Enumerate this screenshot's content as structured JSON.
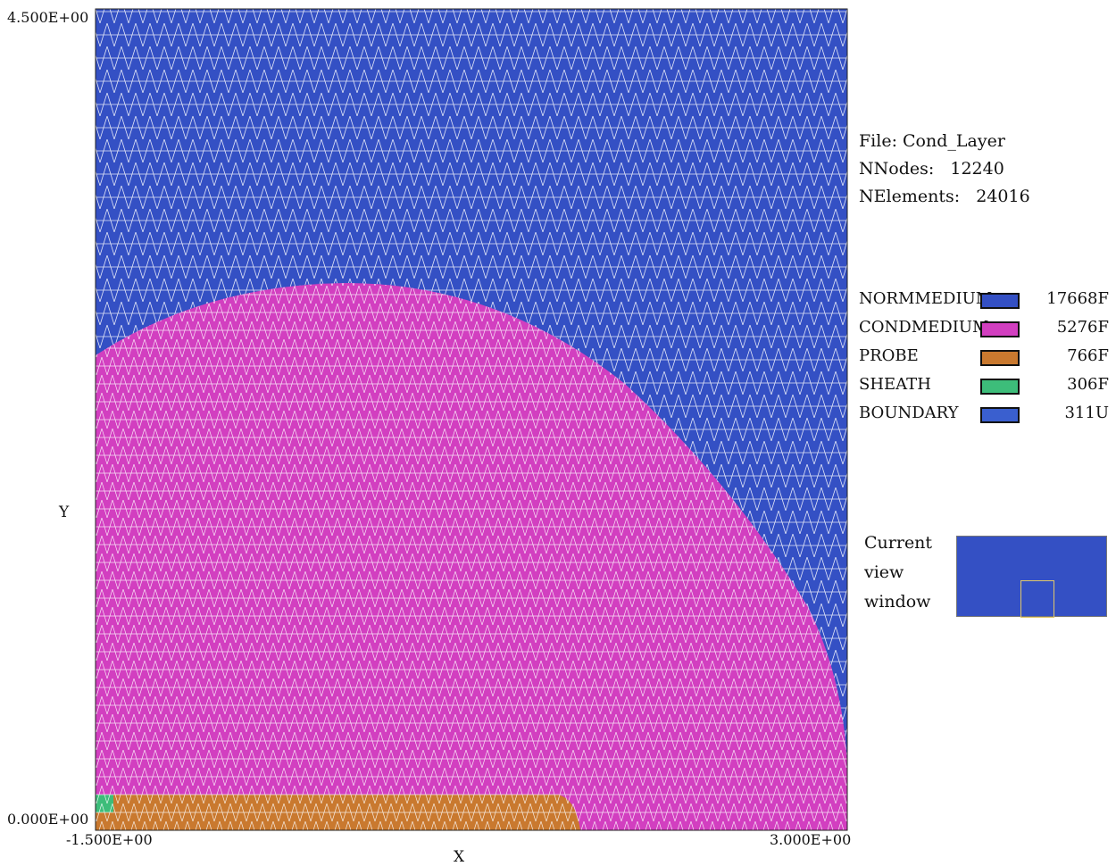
{
  "axes": {
    "y_max_label": "4.500E+00",
    "y_min_label": "0.000E+00",
    "x_min_label": "-1.500E+00",
    "x_max_label": "3.000E+00",
    "x_axis_label": "X",
    "y_axis_label": "Y"
  },
  "info": {
    "file": "File: Cond_Layer",
    "nnodes": "NNodes:   12240",
    "nelements": "NElements:   24016"
  },
  "legend": [
    {
      "name": "NORMMEDIUM",
      "count": "17668F",
      "color": "#3450c4"
    },
    {
      "name": "CONDMEDIUM",
      "count": "5276F",
      "color": "#d23fc0"
    },
    {
      "name": "PROBE",
      "count": "766F",
      "color": "#c9792f"
    },
    {
      "name": "SHEATH",
      "count": "306F",
      "color": "#3dbd7a"
    },
    {
      "name": "BOUNDARY",
      "count": "311U",
      "color": "#3a5fcf"
    }
  ],
  "view_window": {
    "line1": "Current",
    "line2": "view",
    "line3": "window",
    "background": "#3450c4",
    "frame_color": "#e2c86a"
  },
  "colors": {
    "norm_medium": "#3450c4",
    "cond_medium": "#d23fc0",
    "probe": "#c9792f",
    "sheath": "#3dbd7a",
    "mesh_line": "#ffffff"
  }
}
